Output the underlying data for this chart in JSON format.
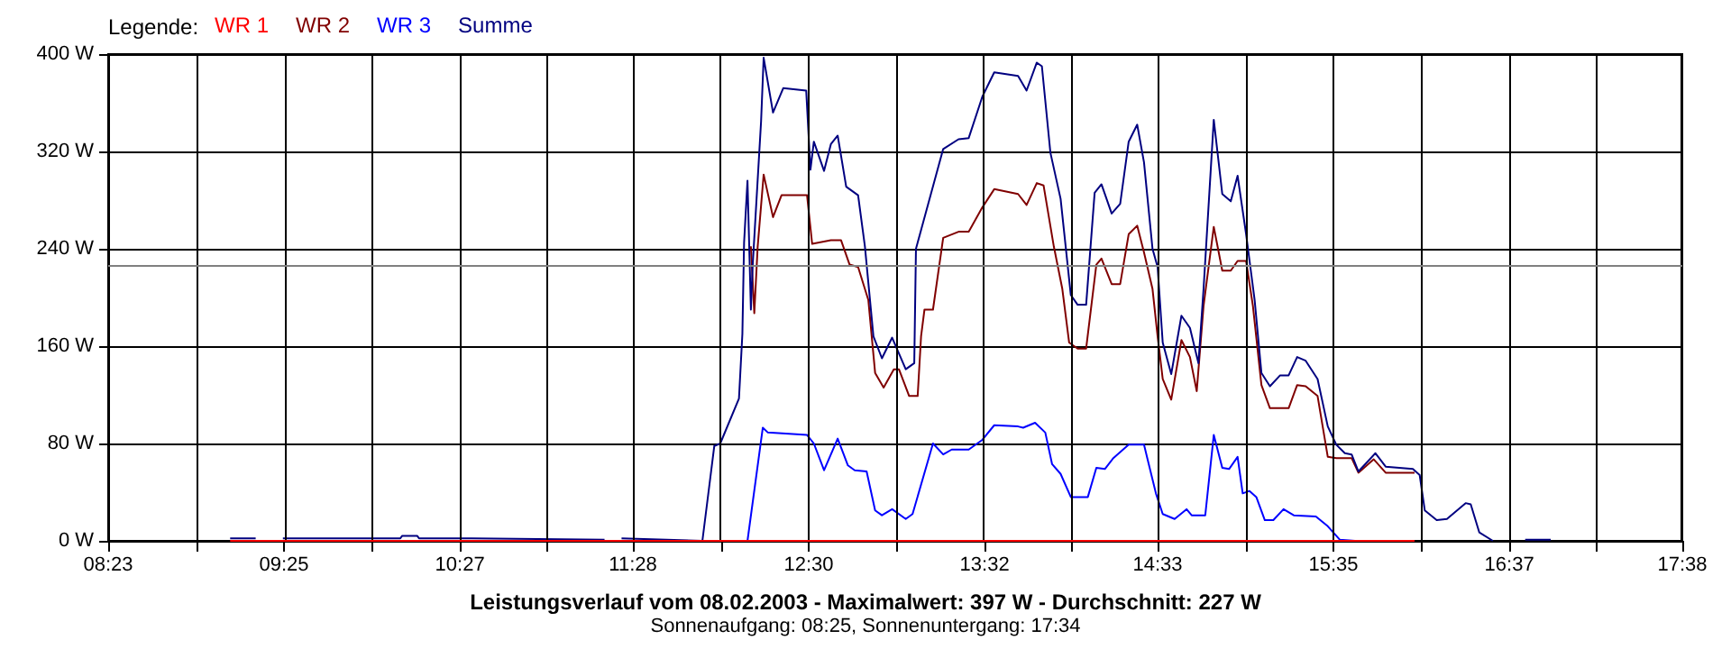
{
  "chart_data": {
    "type": "line",
    "title": "Leistungsverlauf vom 08.02.2003 - Maximalwert: 397 W - Durchschnitt: 227 W",
    "subtitle": "Sonnenaufgang: 08:25, Sonnenuntergang: 17:34",
    "legend_title": "Legende:",
    "legend": "top left",
    "grid": true,
    "marker": "none",
    "line_style": "solid",
    "xlim": [
      8.3833,
      17.6333
    ],
    "xticks": [
      {
        "value": 8.3833,
        "label": "08:23"
      },
      {
        "value": 8.9,
        "label": null
      },
      {
        "value": 9.4167,
        "label": "09:25"
      },
      {
        "value": 9.9333,
        "label": null
      },
      {
        "value": 10.45,
        "label": "10:27"
      },
      {
        "value": 10.9583,
        "label": null
      },
      {
        "value": 11.4667,
        "label": "11:28"
      },
      {
        "value": 11.9833,
        "label": null
      },
      {
        "value": 12.5,
        "label": "12:30"
      },
      {
        "value": 13.0167,
        "label": null
      },
      {
        "value": 13.5333,
        "label": "13:32"
      },
      {
        "value": 14.0417,
        "label": null
      },
      {
        "value": 14.55,
        "label": "14:33"
      },
      {
        "value": 15.0667,
        "label": null
      },
      {
        "value": 15.5833,
        "label": "15:35"
      },
      {
        "value": 16.1,
        "label": null
      },
      {
        "value": 16.6167,
        "label": "16:37"
      },
      {
        "value": 17.125,
        "label": null
      },
      {
        "value": 17.6333,
        "label": "17:38"
      }
    ],
    "ylim": [
      0,
      400
    ],
    "yticks": [
      {
        "value": 0,
        "label": "0 W"
      },
      {
        "value": 80,
        "label": "80 W"
      },
      {
        "value": 160,
        "label": "160 W"
      },
      {
        "value": 240,
        "label": "240 W"
      },
      {
        "value": 320,
        "label": "320 W"
      },
      {
        "value": 400,
        "label": "400 W"
      }
    ],
    "ref_lines": [
      {
        "axis": "y",
        "value": 227,
        "label": null,
        "color": "#808080"
      }
    ],
    "series": [
      {
        "name": "WR 1",
        "color": "#ff0000",
        "x": [
          9.1,
          16.06
        ],
        "values": [
          0,
          0
        ]
      },
      {
        "name": "WR 2",
        "color": "#800000",
        "x": [
          12.16,
          12.18,
          12.2,
          12.235,
          12.29,
          12.34,
          12.49,
          12.52,
          12.63,
          12.69,
          12.74,
          12.79,
          12.85,
          12.89,
          12.94,
          13.0,
          13.03,
          13.09,
          13.14,
          13.16,
          13.18,
          13.23,
          13.29,
          13.38,
          13.44,
          13.52,
          13.59,
          13.73,
          13.78,
          13.84,
          13.88,
          13.94,
          13.99,
          14.03,
          14.08,
          14.13,
          14.19,
          14.22,
          14.28,
          14.33,
          14.38,
          14.43,
          14.47,
          14.52,
          14.55,
          14.58,
          14.63,
          14.69,
          14.74,
          14.78,
          14.82,
          14.88,
          14.93,
          14.98,
          15.02,
          15.07,
          15.11,
          15.16,
          15.21,
          15.32,
          15.37,
          15.42,
          15.49,
          15.55,
          15.6,
          15.69,
          15.73,
          15.82,
          15.89,
          16.06
        ],
        "values": [
          242,
          187,
          242,
          301,
          266,
          284,
          284,
          244,
          247,
          247,
          227,
          225,
          198,
          138,
          126,
          141,
          141,
          119,
          119,
          168,
          190,
          190,
          249,
          254,
          254,
          274,
          289,
          285,
          276,
          294,
          292,
          242,
          207,
          163,
          158,
          158,
          227,
          232,
          211,
          211,
          252,
          259,
          237,
          207,
          168,
          133,
          116,
          165,
          151,
          123,
          193,
          258,
          222,
          222,
          230,
          230,
          193,
          128,
          109,
          109,
          128,
          127,
          119,
          69,
          68,
          68,
          56,
          67,
          56,
          56
        ]
      },
      {
        "name": "WR 3",
        "color": "#0000ff",
        "x": [
          12.14,
          12.23,
          12.26,
          12.49,
          12.53,
          12.59,
          12.67,
          12.73,
          12.77,
          12.84,
          12.89,
          12.93,
          12.99,
          13.07,
          13.11,
          13.23,
          13.29,
          13.34,
          13.44,
          13.52,
          13.59,
          13.73,
          13.76,
          13.83,
          13.89,
          13.93,
          13.98,
          14.04,
          14.14,
          14.19,
          14.24,
          14.29,
          14.38,
          14.47,
          14.54,
          14.58,
          14.65,
          14.72,
          14.75,
          14.83,
          14.88,
          14.93,
          14.97,
          15.02,
          15.05,
          15.09,
          15.13,
          15.18,
          15.23,
          15.29,
          15.35,
          15.48,
          15.55,
          15.62,
          15.71
        ],
        "values": [
          0,
          93,
          89,
          87,
          80,
          58,
          84,
          62,
          58,
          57,
          25,
          21,
          26,
          18,
          22,
          80,
          71,
          75,
          75,
          83,
          95,
          94,
          93,
          97,
          89,
          63,
          55,
          36,
          36,
          60,
          59,
          68,
          79,
          79,
          39,
          22,
          18,
          26,
          21,
          21,
          87,
          60,
          59,
          69,
          39,
          41,
          36,
          17,
          17,
          26,
          21,
          20,
          12,
          1,
          0
        ]
      },
      {
        "name": "Summe",
        "color": "#000080",
        "x": [
          9.1,
          9.25,
          9.33,
          9.41,
          10.1,
          10.11,
          10.2,
          10.21,
          10.52,
          11.3,
          11.35,
          11.4,
          11.875,
          11.945,
          11.98,
          12.09,
          12.11,
          12.12,
          12.14,
          12.16,
          12.17,
          12.22,
          12.235,
          12.29,
          12.35,
          12.485,
          12.51,
          12.53,
          12.59,
          12.63,
          12.67,
          12.72,
          12.79,
          12.83,
          12.88,
          12.93,
          12.99,
          13.07,
          13.12,
          13.13,
          13.29,
          13.38,
          13.44,
          13.52,
          13.59,
          13.73,
          13.78,
          13.84,
          13.87,
          13.92,
          13.98,
          14.04,
          14.08,
          14.13,
          14.18,
          14.22,
          14.28,
          14.33,
          14.38,
          14.43,
          14.47,
          14.52,
          14.55,
          14.58,
          14.63,
          14.69,
          14.74,
          14.79,
          14.82,
          14.88,
          14.93,
          14.98,
          15.02,
          15.07,
          15.12,
          15.16,
          15.21,
          15.27,
          15.32,
          15.37,
          15.42,
          15.49,
          15.55,
          15.6,
          15.65,
          15.69,
          15.73,
          15.83,
          15.89,
          16.05,
          16.09,
          16.12,
          16.19,
          16.25,
          16.36,
          16.39,
          16.44,
          16.52,
          16.6,
          16.71,
          16.86
        ],
        "values": [
          2,
          2,
          null,
          2,
          2,
          4,
          4,
          2,
          2,
          1,
          null,
          2,
          0,
          78,
          80,
          117,
          170,
          245,
          296,
          190,
          225,
          345,
          397,
          352,
          372,
          370,
          305,
          328,
          304,
          326,
          333,
          291,
          284,
          242,
          168,
          150,
          167,
          141,
          146,
          240,
          322,
          330,
          331,
          365,
          385,
          382,
          370,
          393,
          390,
          319,
          281,
          202,
          194,
          194,
          286,
          293,
          269,
          277,
          328,
          342,
          311,
          240,
          225,
          163,
          137,
          185,
          175,
          146,
          207,
          346,
          285,
          279,
          300,
          252,
          198,
          138,
          127,
          136,
          136,
          151,
          148,
          133,
          94,
          79,
          72,
          71,
          57,
          72,
          61,
          59,
          54,
          25,
          17,
          18,
          31,
          30,
          7,
          0,
          null,
          1,
          1
        ]
      }
    ]
  }
}
